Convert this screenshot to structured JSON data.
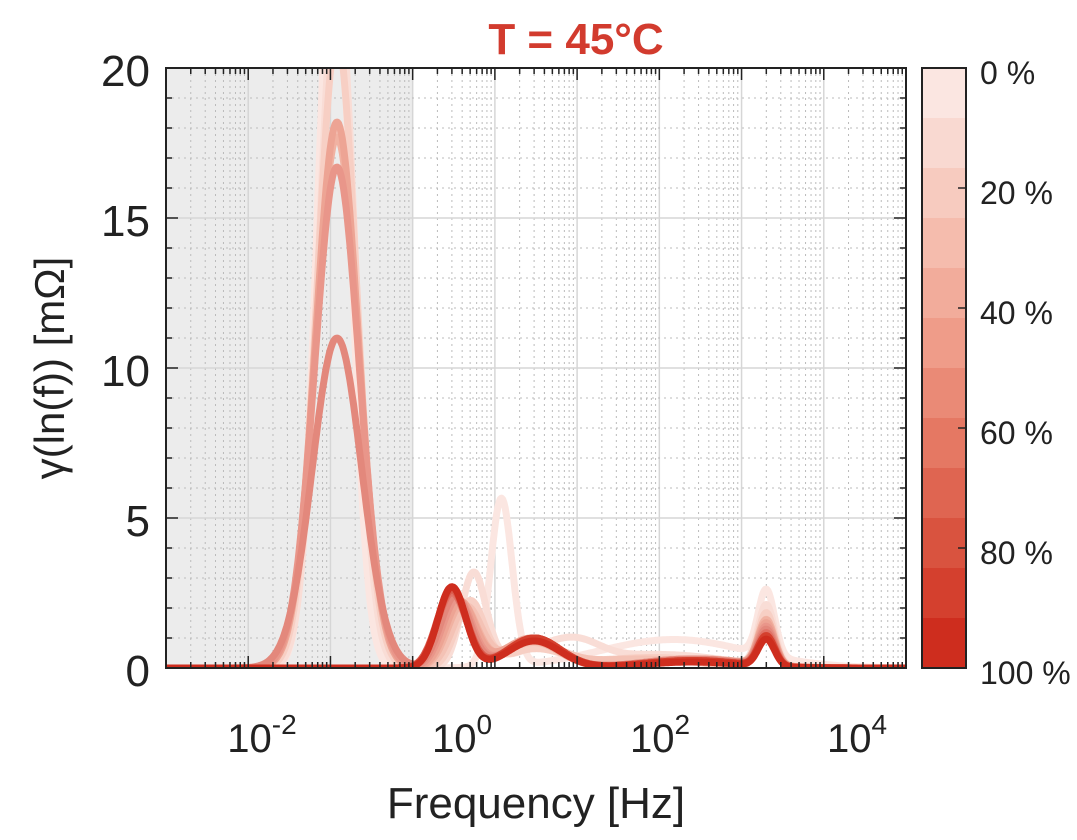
{
  "chart_data": {
    "type": "line",
    "title": "T = 45°C",
    "title_color": "#d23b2e",
    "xlabel": "Frequency [Hz]",
    "ylabel": "γ(ln(f)) [mΩ]",
    "x_scale": "log",
    "xlim": [
      0.0001,
      100000
    ],
    "ylim": [
      0,
      20
    ],
    "grid": true,
    "x_ticks": [
      {
        "value": 0.01,
        "base": "10",
        "exp": "-2"
      },
      {
        "value": 1,
        "base": "10",
        "exp": "0"
      },
      {
        "value": 100,
        "base": "10",
        "exp": "2"
      },
      {
        "value": 10000,
        "base": "10",
        "exp": "4"
      }
    ],
    "y_ticks": [
      "0",
      "5",
      "10",
      "15",
      "20"
    ],
    "shaded_region": {
      "x_from": 0.0001,
      "x_to": 0.1,
      "color": "#ececec"
    },
    "colorbar": {
      "labels": [
        "0 %",
        "20 %",
        "40 %",
        "60 %",
        "80 %",
        "100 %"
      ],
      "colors": [
        "#fbe6e1",
        "#f9d9d1",
        "#f7cbbf",
        "#f5bcad",
        "#f2ac9b",
        "#ef9c89",
        "#ea8a76",
        "#e57863",
        "#df6551",
        "#d9533f",
        "#d4402e",
        "#ce2d1e"
      ]
    },
    "series": [
      {
        "soc": 0.0,
        "color": "#fbe6e1",
        "peaks": [
          [
            0.011,
            25.0,
            0.2
          ],
          [
            1.2,
            5.6,
            0.13
          ],
          [
            3.0,
            0.0,
            0.5
          ],
          [
            150,
            0.95,
            0.9
          ],
          [
            2000,
            2.2,
            0.1
          ]
        ]
      },
      {
        "soc": 0.09,
        "color": "#f9ddd6",
        "peaks": [
          [
            0.012,
            23.0,
            0.22
          ],
          [
            0.55,
            3.1,
            0.15
          ],
          [
            3.0,
            0.5,
            0.4
          ],
          [
            10,
            0.6,
            0.3
          ],
          [
            100,
            0.45,
            0.8
          ],
          [
            2000,
            2.0,
            0.1
          ]
        ]
      },
      {
        "soc": 0.18,
        "color": "#f7cfc4",
        "peaks": [
          [
            0.012,
            21.0,
            0.24
          ],
          [
            0.5,
            2.2,
            0.17
          ],
          [
            3.0,
            0.6,
            0.35
          ],
          [
            80,
            0.35,
            0.7
          ],
          [
            2000,
            1.8,
            0.1
          ]
        ]
      },
      {
        "soc": 0.27,
        "color": "#f4c2b5",
        "peaks": [
          [
            0.012,
            18.0,
            0.26
          ],
          [
            0.45,
            2.0,
            0.18
          ],
          [
            2.8,
            0.8,
            0.35
          ],
          [
            60,
            0.3,
            0.7
          ],
          [
            2000,
            1.6,
            0.1
          ]
        ]
      },
      {
        "soc": 0.36,
        "color": "#f1b2a2",
        "peaks": [
          [
            0.012,
            17.7,
            0.26
          ],
          [
            0.4,
            2.1,
            0.18
          ],
          [
            2.8,
            0.9,
            0.33
          ],
          [
            300,
            0.3,
            0.6
          ],
          [
            2000,
            1.5,
            0.1
          ]
        ]
      },
      {
        "soc": 0.45,
        "color": "#eda494",
        "peaks": [
          [
            0.012,
            18.2,
            0.26
          ],
          [
            0.38,
            2.2,
            0.18
          ],
          [
            2.8,
            1.0,
            0.33
          ],
          [
            300,
            0.3,
            0.6
          ],
          [
            2000,
            1.4,
            0.1
          ]
        ]
      },
      {
        "soc": 0.55,
        "color": "#e9968a",
        "peaks": [
          [
            0.012,
            16.7,
            0.27
          ],
          [
            0.35,
            2.3,
            0.18
          ],
          [
            3.0,
            1.0,
            0.32
          ],
          [
            250,
            0.3,
            0.6
          ],
          [
            2000,
            1.3,
            0.1
          ]
        ]
      },
      {
        "soc": 0.64,
        "color": "#e3887c",
        "peaks": [
          [
            0.012,
            11.0,
            0.3
          ],
          [
            0.33,
            2.4,
            0.18
          ],
          [
            3.0,
            1.0,
            0.32
          ],
          [
            250,
            0.3,
            0.6
          ],
          [
            2000,
            1.2,
            0.1
          ]
        ]
      },
      {
        "soc": 0.73,
        "color": "#e07266",
        "peaks": [
          [
            0.3,
            2.5,
            0.18
          ],
          [
            3.0,
            1.0,
            0.32
          ],
          [
            250,
            0.25,
            0.6
          ],
          [
            2000,
            1.1,
            0.1
          ]
        ]
      },
      {
        "soc": 0.82,
        "color": "#da5a4c",
        "peaks": [
          [
            0.3,
            2.6,
            0.18
          ],
          [
            3.0,
            1.0,
            0.32
          ],
          [
            250,
            0.25,
            0.6
          ],
          [
            2000,
            1.0,
            0.1
          ]
        ]
      },
      {
        "soc": 0.91,
        "color": "#d4402e",
        "peaks": [
          [
            0.3,
            2.7,
            0.17
          ],
          [
            3.0,
            1.0,
            0.32
          ],
          [
            250,
            0.25,
            0.6
          ],
          [
            2000,
            1.0,
            0.1
          ]
        ]
      },
      {
        "soc": 1.0,
        "color": "#ce2d1e",
        "peaks": [
          [
            0.3,
            2.7,
            0.17
          ],
          [
            3.0,
            0.9,
            0.32
          ],
          [
            250,
            0.2,
            0.6
          ],
          [
            2000,
            0.9,
            0.1
          ]
        ]
      }
    ]
  }
}
